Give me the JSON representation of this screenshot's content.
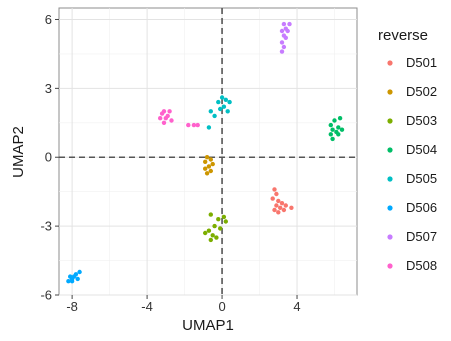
{
  "chart_data": {
    "type": "scatter",
    "xlabel": "UMAP1",
    "ylabel": "UMAP2",
    "xlim": [
      -8.7,
      7.2
    ],
    "ylim": [
      -6.0,
      6.5
    ],
    "x_ticks": [
      -8,
      -4,
      0,
      4
    ],
    "y_ticks": [
      -6,
      -3,
      0,
      3,
      6
    ],
    "x_tick_labels": [
      "-8",
      "-4",
      "0",
      "4"
    ],
    "y_tick_labels": [
      "-6",
      "-3",
      "0",
      "3",
      "6"
    ],
    "grid": true,
    "reference_lines": {
      "x": 0,
      "y": 0,
      "style": "dashed"
    },
    "legend": {
      "title": "reverse",
      "position": "right"
    },
    "series": [
      {
        "name": "D501",
        "color": "#F8766D",
        "points": [
          [
            2.8,
            -1.4
          ],
          [
            2.9,
            -1.6
          ],
          [
            2.7,
            -1.8
          ],
          [
            3.0,
            -1.9
          ],
          [
            3.2,
            -2.0
          ],
          [
            2.9,
            -2.1
          ],
          [
            3.1,
            -2.2
          ],
          [
            2.8,
            -2.3
          ],
          [
            3.4,
            -2.1
          ],
          [
            3.7,
            -2.2
          ],
          [
            3.0,
            -2.4
          ],
          [
            3.3,
            -2.3
          ]
        ]
      },
      {
        "name": "D502",
        "color": "#CD9600",
        "points": [
          [
            -0.8,
            0.0
          ],
          [
            -0.6,
            -0.1
          ],
          [
            -0.9,
            -0.2
          ],
          [
            -0.5,
            -0.3
          ],
          [
            -0.7,
            -0.4
          ],
          [
            -0.9,
            -0.5
          ],
          [
            -0.6,
            -0.6
          ],
          [
            -0.8,
            -0.7
          ]
        ]
      },
      {
        "name": "D503",
        "color": "#7CAE00",
        "points": [
          [
            -0.6,
            -2.5
          ],
          [
            -0.2,
            -2.7
          ],
          [
            0.1,
            -2.6
          ],
          [
            0.2,
            -2.8
          ],
          [
            -0.4,
            -3.0
          ],
          [
            -0.1,
            -3.1
          ],
          [
            -0.7,
            -3.2
          ],
          [
            -0.9,
            -3.3
          ],
          [
            -0.5,
            -3.4
          ],
          [
            -0.3,
            -3.5
          ],
          [
            -0.6,
            -3.6
          ]
        ]
      },
      {
        "name": "D504",
        "color": "#00BE67",
        "points": [
          [
            6.0,
            1.6
          ],
          [
            6.3,
            1.7
          ],
          [
            5.8,
            1.4
          ],
          [
            6.2,
            1.3
          ],
          [
            5.9,
            1.2
          ],
          [
            6.4,
            1.2
          ],
          [
            6.1,
            1.1
          ],
          [
            5.8,
            1.0
          ],
          [
            6.2,
            1.0
          ],
          [
            5.9,
            0.8
          ]
        ]
      },
      {
        "name": "D505",
        "color": "#00BFC4",
        "points": [
          [
            0.0,
            2.6
          ],
          [
            0.2,
            2.5
          ],
          [
            -0.2,
            2.4
          ],
          [
            0.4,
            2.4
          ],
          [
            0.1,
            2.2
          ],
          [
            -0.1,
            2.1
          ],
          [
            0.3,
            2.0
          ],
          [
            -0.6,
            2.0
          ],
          [
            -0.4,
            1.8
          ],
          [
            -0.7,
            1.3
          ]
        ]
      },
      {
        "name": "D506",
        "color": "#00A9FF",
        "points": [
          [
            -7.6,
            -5.0
          ],
          [
            -7.8,
            -5.1
          ],
          [
            -7.9,
            -5.2
          ],
          [
            -8.1,
            -5.2
          ],
          [
            -8.0,
            -5.3
          ],
          [
            -8.2,
            -5.4
          ],
          [
            -8.0,
            -5.4
          ],
          [
            -7.7,
            -5.3
          ]
        ]
      },
      {
        "name": "D507",
        "color": "#C77CFF",
        "points": [
          [
            3.3,
            5.8
          ],
          [
            3.6,
            5.8
          ],
          [
            3.4,
            5.6
          ],
          [
            3.2,
            5.5
          ],
          [
            3.5,
            5.5
          ],
          [
            3.3,
            5.3
          ],
          [
            3.4,
            5.2
          ],
          [
            3.2,
            5.0
          ],
          [
            3.3,
            4.8
          ],
          [
            3.2,
            4.6
          ]
        ]
      },
      {
        "name": "D508",
        "color": "#FF61CC",
        "points": [
          [
            -3.1,
            2.0
          ],
          [
            -2.8,
            2.0
          ],
          [
            -3.2,
            1.9
          ],
          [
            -2.9,
            1.8
          ],
          [
            -3.3,
            1.7
          ],
          [
            -3.0,
            1.7
          ],
          [
            -2.7,
            1.6
          ],
          [
            -3.1,
            1.5
          ],
          [
            -1.8,
            1.4
          ],
          [
            -1.5,
            1.4
          ],
          [
            -1.3,
            1.4
          ]
        ]
      }
    ]
  }
}
